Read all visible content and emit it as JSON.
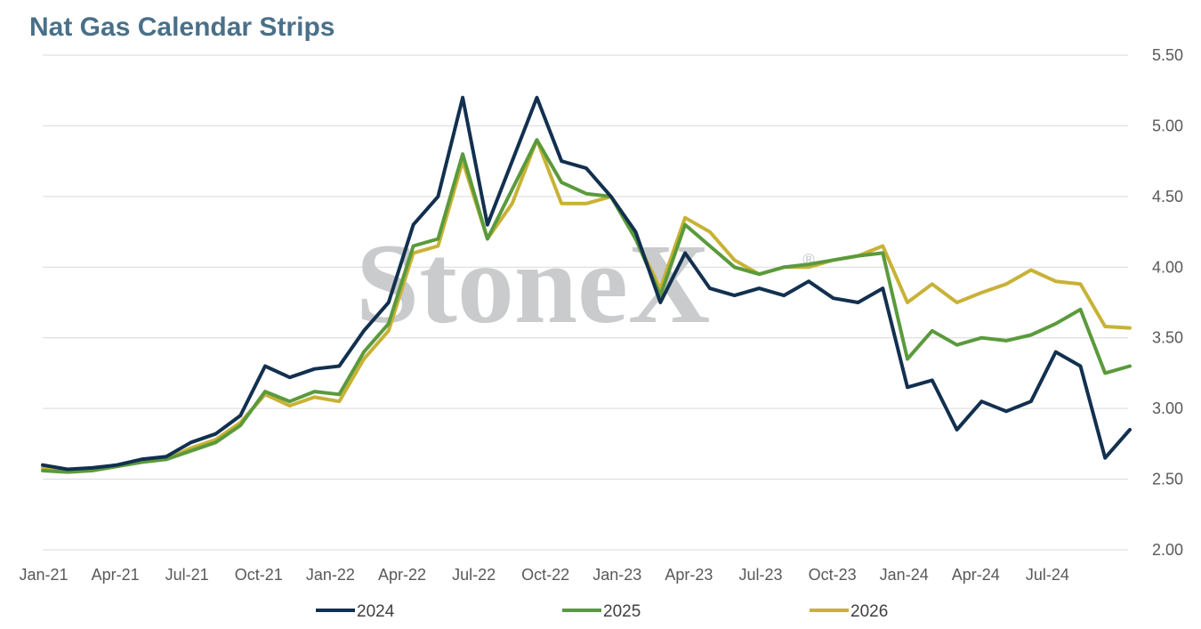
{
  "chart_data": {
    "type": "line",
    "title": "Nat Gas Calendar Strips",
    "watermark": "StoneX",
    "watermark_mark": "®",
    "x_tick_labels": [
      "Jan-21",
      "Apr-21",
      "Jul-21",
      "Oct-21",
      "Jan-22",
      "Apr-22",
      "Jul-22",
      "Oct-22",
      "Jan-23",
      "Apr-23",
      "Jul-23",
      "Oct-23",
      "Jan-24",
      "Apr-24",
      "Jul-24"
    ],
    "y_tick_labels": [
      "5.50",
      "5.00",
      "4.50",
      "4.00",
      "3.50",
      "3.00",
      "2.50",
      "2.00"
    ],
    "ylim": [
      2.0,
      5.5
    ],
    "y_axis_position": "right",
    "grid": "horizontal",
    "legend_position": "bottom",
    "x": [
      "2021-01",
      "2021-02",
      "2021-03",
      "2021-04",
      "2021-05",
      "2021-06",
      "2021-07",
      "2021-08",
      "2021-09",
      "2021-10",
      "2021-11",
      "2021-12",
      "2022-01",
      "2022-02",
      "2022-03",
      "2022-04",
      "2022-05",
      "2022-06",
      "2022-07",
      "2022-08",
      "2022-09",
      "2022-10",
      "2022-11",
      "2022-12",
      "2023-01",
      "2023-02",
      "2023-03",
      "2023-04",
      "2023-05",
      "2023-06",
      "2023-07",
      "2023-08",
      "2023-09",
      "2023-10",
      "2023-11",
      "2023-12",
      "2024-01",
      "2024-02",
      "2024-03",
      "2024-04",
      "2024-05",
      "2024-06",
      "2024-07",
      "2024-08",
      "2024-09"
    ],
    "series": [
      {
        "name": "2024",
        "color": "#12304f",
        "values": [
          2.6,
          2.57,
          2.58,
          2.6,
          2.64,
          2.66,
          2.76,
          2.82,
          2.95,
          3.3,
          3.22,
          3.28,
          3.3,
          3.55,
          3.75,
          4.3,
          4.5,
          5.2,
          4.3,
          4.75,
          5.2,
          4.75,
          4.7,
          4.5,
          4.25,
          3.75,
          4.1,
          3.85,
          3.8,
          3.85,
          3.8,
          3.9,
          3.78,
          3.75,
          3.85,
          3.15,
          3.2,
          2.85,
          3.05,
          2.98,
          3.05,
          3.4,
          3.3,
          2.65,
          2.85
        ]
      },
      {
        "name": "2025",
        "color": "#5a9a3c",
        "values": [
          2.56,
          2.55,
          2.56,
          2.59,
          2.62,
          2.64,
          2.7,
          2.76,
          2.88,
          3.12,
          3.05,
          3.12,
          3.1,
          3.4,
          3.6,
          4.15,
          4.2,
          4.8,
          4.2,
          4.55,
          4.9,
          4.6,
          4.52,
          4.5,
          4.2,
          3.8,
          4.3,
          4.15,
          4.0,
          3.95,
          4.0,
          4.02,
          4.05,
          4.08,
          4.1,
          3.35,
          3.55,
          3.45,
          3.5,
          3.48,
          3.52,
          3.6,
          3.7,
          3.25,
          3.3
        ]
      },
      {
        "name": "2026",
        "color": "#c8b236",
        "values": [
          2.58,
          2.57,
          2.57,
          2.6,
          2.63,
          2.64,
          2.72,
          2.78,
          2.9,
          3.1,
          3.02,
          3.08,
          3.05,
          3.35,
          3.55,
          4.1,
          4.15,
          4.75,
          4.2,
          4.45,
          4.9,
          4.45,
          4.45,
          4.5,
          4.2,
          3.85,
          4.35,
          4.25,
          4.05,
          3.95,
          4.0,
          4.0,
          4.05,
          4.08,
          4.15,
          3.75,
          3.88,
          3.75,
          3.82,
          3.88,
          3.98,
          3.9,
          3.88,
          3.58,
          3.57
        ]
      }
    ]
  }
}
